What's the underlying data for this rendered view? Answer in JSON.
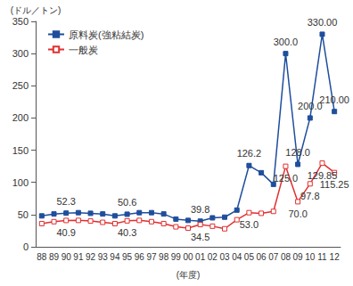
{
  "chart_data": {
    "type": "line",
    "y_label": "(ドル／トン)",
    "x_label": "(年度)",
    "categories": [
      "88",
      "89",
      "90",
      "91",
      "92",
      "93",
      "94",
      "95",
      "96",
      "97",
      "98",
      "99",
      "00",
      "01",
      "02",
      "03",
      "04",
      "05",
      "06",
      "07",
      "08",
      "09",
      "10",
      "11",
      "12"
    ],
    "series": [
      {
        "name": "原料炭(強粘結炭)",
        "color": "#1f4e9c",
        "marker": "square",
        "values": [
          48,
          51,
          52.3,
          53,
          52,
          51,
          48,
          50.6,
          53,
          53,
          51,
          43,
          41,
          39.8,
          45,
          46,
          57,
          126.2,
          115,
          97,
          300.0,
          128.0,
          200.0,
          330.0,
          210.0
        ],
        "value_labels": [
          null,
          null,
          "52.3",
          null,
          null,
          null,
          null,
          "50.6",
          null,
          null,
          null,
          null,
          null,
          "39.8",
          null,
          null,
          null,
          "126.2",
          null,
          null,
          "300.0",
          "128.0",
          "200.0",
          "330.00",
          "210.00"
        ]
      },
      {
        "name": "一般炭",
        "color": "#e03030",
        "marker": "open_square",
        "values": [
          36,
          39,
          40.9,
          41,
          40,
          38,
          36,
          40.3,
          41,
          39,
          36,
          31,
          29,
          34.5,
          32,
          28,
          42,
          53.0,
          52,
          55,
          125.0,
          70.0,
          97.8,
          129.85,
          115.25
        ],
        "value_labels": [
          null,
          null,
          "40.9",
          null,
          null,
          null,
          null,
          "40.3",
          null,
          null,
          null,
          null,
          null,
          "34.5",
          null,
          null,
          null,
          "53.0",
          null,
          null,
          "125.0",
          "70.0",
          "97.8",
          "129.85",
          "115.25"
        ]
      }
    ],
    "ylim": [
      0,
      350
    ],
    "yticks": [
      0,
      50,
      100,
      150,
      200,
      250,
      300,
      350
    ],
    "grid": false,
    "legend": "top-left",
    "data_labels": true
  }
}
